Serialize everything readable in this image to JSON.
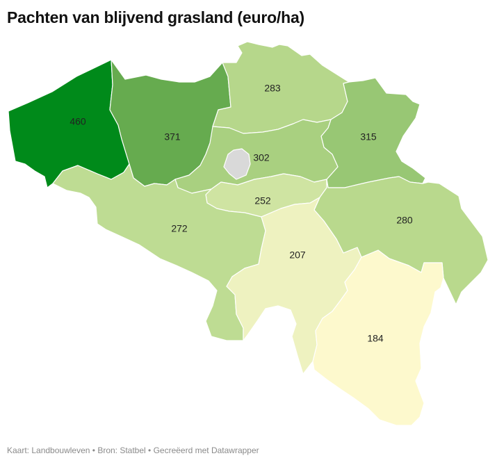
{
  "title": "Pachten van blijvend grasland (euro/ha)",
  "footer": {
    "map_by": "Kaart: Landbouwleven",
    "source": "Bron: Statbel",
    "made_with": "Gecreëerd met Datawrapper",
    "separator": "•"
  },
  "colors": {
    "no_data": "#d9d9d9",
    "scale": [
      "#fdf9cd",
      "#eef2c0",
      "#d6e8a8",
      "#b8d98b",
      "#98c774",
      "#66ab4f",
      "#008a1a"
    ]
  },
  "provinces": [
    {
      "id": "west-vlaanderen",
      "value": 460,
      "label": "460",
      "color": "#008a1a"
    },
    {
      "id": "oost-vlaanderen",
      "value": 371,
      "label": "371",
      "color": "#66ab4f"
    },
    {
      "id": "antwerpen",
      "value": 283,
      "label": "283",
      "color": "#b6d78b"
    },
    {
      "id": "limburg",
      "value": 315,
      "label": "315",
      "color": "#98c774"
    },
    {
      "id": "vlaams-brabant",
      "value": 302,
      "label": "302",
      "color": "#a9d080"
    },
    {
      "id": "brussel",
      "value": null,
      "label": "",
      "color": "#d9d9d9"
    },
    {
      "id": "waals-brabant",
      "value": 252,
      "label": "252",
      "color": "#cfe4a2"
    },
    {
      "id": "henegouwen",
      "value": 272,
      "label": "272",
      "color": "#bedc93"
    },
    {
      "id": "luik",
      "value": 280,
      "label": "280",
      "color": "#b9d98d"
    },
    {
      "id": "namen",
      "value": 207,
      "label": "207",
      "color": "#eef2c0"
    },
    {
      "id": "luxemburg",
      "value": 184,
      "label": "184",
      "color": "#fdf9cd"
    }
  ]
}
